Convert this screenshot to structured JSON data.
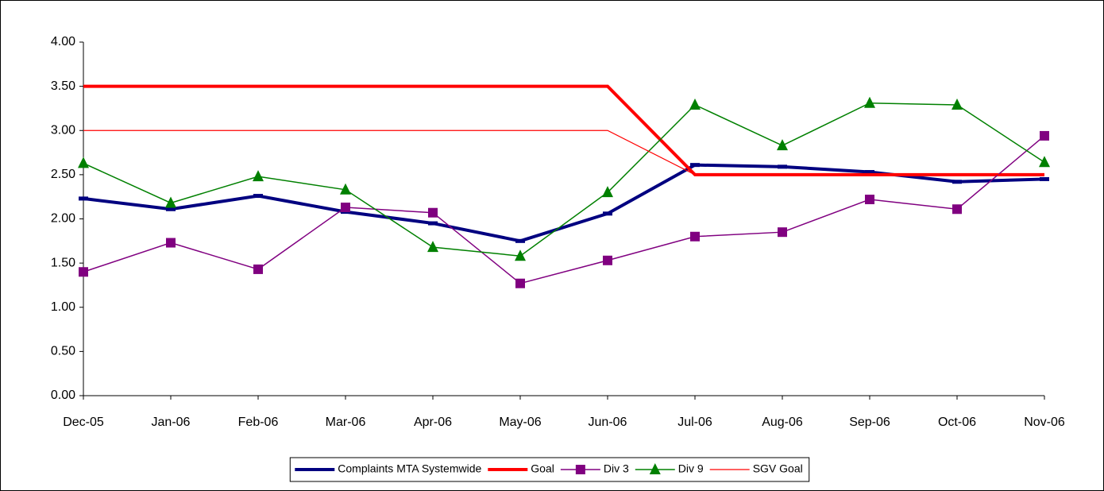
{
  "chart_data": {
    "type": "line",
    "categories": [
      "Dec-05",
      "Jan-06",
      "Feb-06",
      "Mar-06",
      "Apr-06",
      "May-06",
      "Jun-06",
      "Jul-06",
      "Aug-06",
      "Sep-06",
      "Oct-06",
      "Nov-06"
    ],
    "ylim": [
      0,
      4
    ],
    "yticks": [
      {
        "value": 0,
        "label": "0.00"
      },
      {
        "value": 0.5,
        "label": "0.50"
      },
      {
        "value": 1,
        "label": "1.00"
      },
      {
        "value": 1.5,
        "label": "1.50"
      },
      {
        "value": 2,
        "label": "2.00"
      },
      {
        "value": 2.5,
        "label": "2.50"
      },
      {
        "value": 3,
        "label": "3.00"
      },
      {
        "value": 3.5,
        "label": "3.50"
      },
      {
        "value": 4,
        "label": "4.00"
      }
    ],
    "legend_position": "bottom",
    "series": [
      {
        "name": "Complaints MTA Systemwide",
        "color": "#000080",
        "line_width": 4,
        "marker": "dash",
        "values": [
          2.23,
          2.11,
          2.26,
          2.08,
          1.95,
          1.75,
          2.06,
          2.61,
          2.59,
          2.53,
          2.42,
          2.45
        ]
      },
      {
        "name": "Goal",
        "color": "#ff0000",
        "line_width": 4,
        "marker": null,
        "values": [
          3.5,
          3.5,
          3.5,
          3.5,
          3.5,
          3.5,
          3.5,
          2.5,
          2.5,
          2.5,
          2.5,
          2.5
        ]
      },
      {
        "name": "Div 3",
        "color": "#800080",
        "line_width": 1.5,
        "marker": "square",
        "values": [
          1.4,
          1.73,
          1.43,
          2.13,
          2.07,
          1.27,
          1.53,
          1.8,
          1.85,
          2.22,
          2.11,
          2.94
        ]
      },
      {
        "name": "Div 9",
        "color": "#008000",
        "line_width": 1.5,
        "marker": "triangle",
        "values": [
          2.63,
          2.18,
          2.48,
          2.33,
          1.68,
          1.58,
          2.3,
          3.29,
          2.83,
          3.31,
          3.29,
          2.64
        ]
      },
      {
        "name": "SGV Goal",
        "color": "#ff0000",
        "line_width": 1.2,
        "marker": null,
        "values": [
          3.0,
          3.0,
          3.0,
          3.0,
          3.0,
          3.0,
          3.0,
          2.5,
          2.5,
          2.5,
          2.5,
          2.5
        ]
      }
    ]
  }
}
